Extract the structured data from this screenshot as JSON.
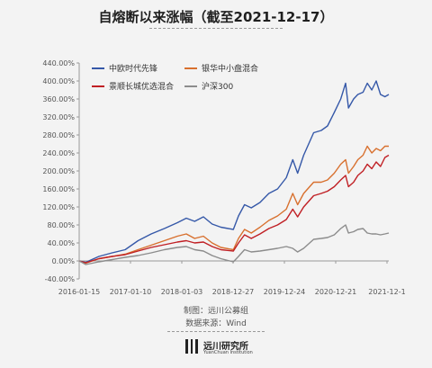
{
  "chart_data": {
    "type": "line",
    "title": "自熔断以来涨幅（截至2021-12-17）",
    "y_ticks": [
      "440.00%",
      "400.00%",
      "360.00%",
      "320.00%",
      "280.00%",
      "240.00%",
      "200.00%",
      "160.00%",
      "120.00%",
      "80.00%",
      "40.00%",
      "0.00%",
      "-40.00%"
    ],
    "x_ticks": [
      "2016-01-15",
      "2017-01-10",
      "2018-01-03",
      "2018-12-27",
      "2019-12-24",
      "2020-12-21",
      "2021-12-1"
    ],
    "ylim": [
      -40,
      440
    ],
    "xlim": [
      "2016-01-15",
      "2021-12-17"
    ],
    "grid": false,
    "legend_position": "top-left",
    "series": [
      {
        "name": "中欧时代先锋",
        "color": "#3558a8",
        "x": [
          "2016-01-15",
          "2016-03-01",
          "2016-06-01",
          "2016-09-01",
          "2016-12-01",
          "2017-03-01",
          "2017-06-01",
          "2017-09-01",
          "2017-12-01",
          "2018-02-01",
          "2018-04-01",
          "2018-06-01",
          "2018-08-01",
          "2018-10-01",
          "2018-12-27",
          "2019-02-01",
          "2019-03-15",
          "2019-05-01",
          "2019-07-01",
          "2019-09-01",
          "2019-11-01",
          "2020-01-01",
          "2020-02-15",
          "2020-03-20",
          "2020-05-01",
          "2020-07-10",
          "2020-09-01",
          "2020-10-15",
          "2020-12-01",
          "2021-01-15",
          "2021-02-18",
          "2021-03-10",
          "2021-04-15",
          "2021-05-15",
          "2021-06-20",
          "2021-07-20",
          "2021-08-20",
          "2021-09-20",
          "2021-10-20",
          "2021-11-20",
          "2021-12-17"
        ],
        "values": [
          0,
          -3,
          10,
          18,
          25,
          45,
          60,
          72,
          85,
          95,
          88,
          98,
          82,
          75,
          70,
          100,
          125,
          118,
          130,
          150,
          160,
          185,
          225,
          195,
          235,
          285,
          290,
          300,
          330,
          360,
          395,
          340,
          360,
          370,
          375,
          395,
          380,
          400,
          370,
          365,
          370
        ]
      },
      {
        "name": "银华中小盘混合",
        "color": "#d8702e",
        "x": [
          "2016-01-15",
          "2016-03-01",
          "2016-06-01",
          "2016-09-01",
          "2016-12-01",
          "2017-03-01",
          "2017-06-01",
          "2017-09-01",
          "2017-12-01",
          "2018-02-01",
          "2018-04-01",
          "2018-06-01",
          "2018-08-01",
          "2018-10-01",
          "2018-12-27",
          "2019-02-01",
          "2019-03-15",
          "2019-05-01",
          "2019-07-01",
          "2019-09-01",
          "2019-11-01",
          "2020-01-01",
          "2020-02-15",
          "2020-03-20",
          "2020-05-01",
          "2020-07-10",
          "2020-09-01",
          "2020-10-15",
          "2020-12-01",
          "2021-01-15",
          "2021-02-18",
          "2021-03-10",
          "2021-04-15",
          "2021-05-15",
          "2021-06-20",
          "2021-07-20",
          "2021-08-20",
          "2021-09-20",
          "2021-10-20",
          "2021-11-20",
          "2021-12-17"
        ],
        "values": [
          0,
          -5,
          5,
          10,
          15,
          25,
          35,
          45,
          55,
          60,
          50,
          55,
          40,
          30,
          25,
          50,
          70,
          62,
          75,
          90,
          100,
          115,
          150,
          125,
          150,
          175,
          175,
          180,
          195,
          215,
          225,
          195,
          210,
          225,
          235,
          255,
          240,
          250,
          245,
          255,
          255
        ]
      },
      {
        "name": "景顺长城优选混合",
        "color": "#c01f24",
        "x": [
          "2016-01-15",
          "2016-03-01",
          "2016-06-01",
          "2016-09-01",
          "2016-12-01",
          "2017-03-01",
          "2017-06-01",
          "2017-09-01",
          "2017-12-01",
          "2018-02-01",
          "2018-04-01",
          "2018-06-01",
          "2018-08-01",
          "2018-10-01",
          "2018-12-27",
          "2019-02-01",
          "2019-03-15",
          "2019-05-01",
          "2019-07-01",
          "2019-09-01",
          "2019-11-01",
          "2020-01-01",
          "2020-02-15",
          "2020-03-20",
          "2020-05-01",
          "2020-07-10",
          "2020-09-01",
          "2020-10-15",
          "2020-12-01",
          "2021-01-15",
          "2021-02-18",
          "2021-03-10",
          "2021-04-15",
          "2021-05-15",
          "2021-06-20",
          "2021-07-20",
          "2021-08-20",
          "2021-09-20",
          "2021-10-20",
          "2021-11-20",
          "2021-12-17"
        ],
        "values": [
          0,
          -4,
          5,
          10,
          14,
          22,
          30,
          36,
          42,
          45,
          40,
          42,
          32,
          25,
          22,
          40,
          58,
          50,
          60,
          72,
          80,
          92,
          115,
          98,
          120,
          145,
          150,
          155,
          165,
          180,
          190,
          165,
          175,
          190,
          200,
          215,
          205,
          220,
          210,
          230,
          235
        ]
      },
      {
        "name": "沪深300",
        "color": "#8c8c8c",
        "x": [
          "2016-01-15",
          "2016-03-01",
          "2016-06-01",
          "2016-09-01",
          "2016-12-01",
          "2017-03-01",
          "2017-06-01",
          "2017-09-01",
          "2017-12-01",
          "2018-02-01",
          "2018-04-01",
          "2018-06-01",
          "2018-08-01",
          "2018-10-01",
          "2018-12-27",
          "2019-02-01",
          "2019-03-15",
          "2019-05-01",
          "2019-07-01",
          "2019-09-01",
          "2019-11-01",
          "2020-01-01",
          "2020-02-15",
          "2020-03-20",
          "2020-05-01",
          "2020-07-10",
          "2020-09-01",
          "2020-10-15",
          "2020-12-01",
          "2021-01-15",
          "2021-02-18",
          "2021-03-10",
          "2021-04-15",
          "2021-05-15",
          "2021-06-20",
          "2021-07-20",
          "2021-08-20",
          "2021-09-20",
          "2021-10-20",
          "2021-11-20",
          "2021-12-17"
        ],
        "values": [
          0,
          -8,
          -2,
          3,
          8,
          12,
          18,
          25,
          30,
          32,
          25,
          22,
          12,
          5,
          -2,
          10,
          25,
          20,
          22,
          25,
          28,
          32,
          28,
          20,
          28,
          48,
          50,
          52,
          58,
          72,
          80,
          62,
          65,
          70,
          72,
          62,
          60,
          60,
          58,
          60,
          62
        ]
      }
    ]
  },
  "footer": {
    "maker": "制图：远川公募组",
    "source": "数据来源：Wind"
  },
  "logo": {
    "cn": "远川研究所",
    "en": "YuanChuan Institution"
  }
}
